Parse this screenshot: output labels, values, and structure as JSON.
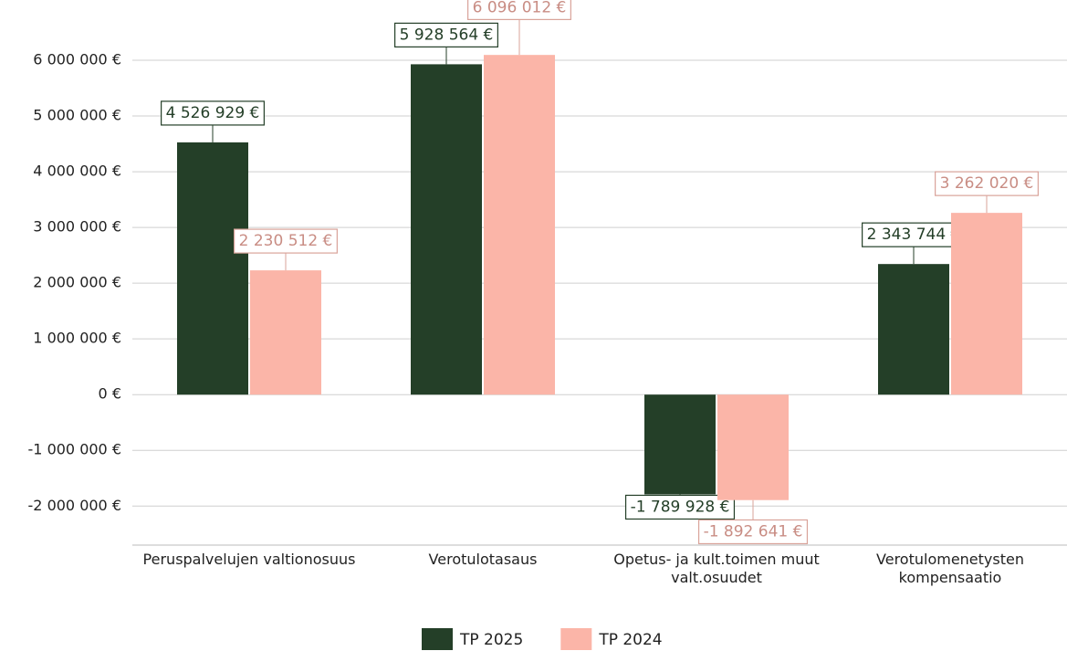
{
  "chart_data": {
    "type": "bar",
    "categories": [
      "Peruspalvelujen valtionosuus",
      "Verotulotasaus",
      "Opetus- ja kult.toimen muut valt.osuudet",
      "Verotulomenetysten kompensaatio"
    ],
    "series": [
      {
        "name": "TP 2025",
        "color": "#243f28",
        "values": [
          4526929,
          5928564,
          -1789928,
          2343744
        ],
        "value_labels": [
          "4 526 929 €",
          "5 928 564 €",
          "-1 789 928 €",
          "2 343 744 €"
        ]
      },
      {
        "name": "TP 2024",
        "color": "#fbb5a8",
        "values": [
          2230512,
          6096012,
          -1892641,
          3262020
        ],
        "value_labels": [
          "2 230 512 €",
          "6 096 012 €",
          "-1 892 641 €",
          "3 262 020 €"
        ]
      }
    ],
    "ylim": [
      -2700000,
      7000000
    ],
    "yticks": [
      {
        "value": -2000000,
        "label": "-2 000 000 €"
      },
      {
        "value": -1000000,
        "label": "-1 000 000 €"
      },
      {
        "value": 0,
        "label": "0 €"
      },
      {
        "value": 1000000,
        "label": "1 000 000 €"
      },
      {
        "value": 2000000,
        "label": "2 000 000 €"
      },
      {
        "value": 3000000,
        "label": "3 000 000 €"
      },
      {
        "value": 4000000,
        "label": "4 000 000 €"
      },
      {
        "value": 5000000,
        "label": "5 000 000 €"
      },
      {
        "value": 6000000,
        "label": "6 000 000 €"
      }
    ],
    "grid": true,
    "legend": "bottom"
  }
}
